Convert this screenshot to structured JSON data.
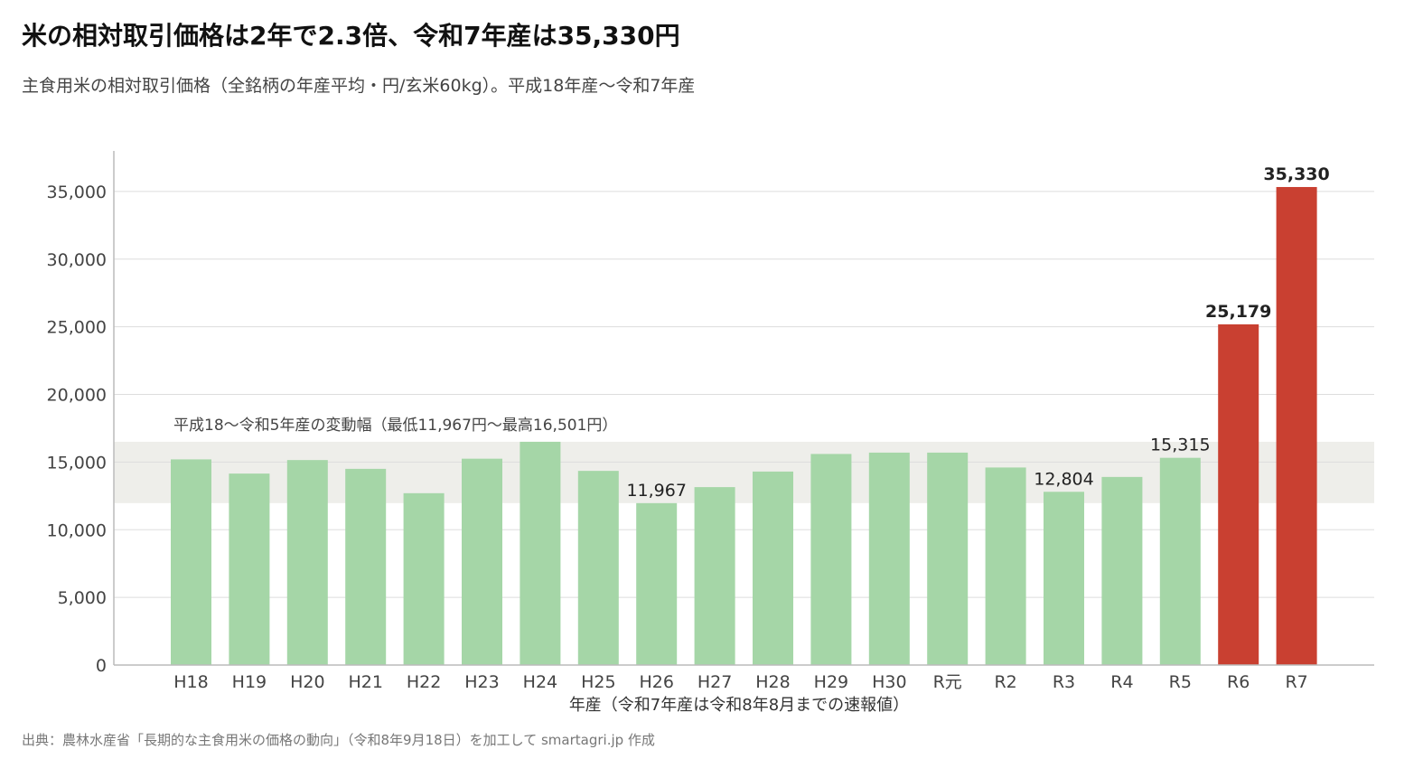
{
  "title": "米の相対取引価格は2年で2.3倍、令和7年産は35,330円",
  "subtitle": "主食用米の相対取引価格（全銘柄の年産平均・円/玄米60kg）。平成18年産〜令和7年産",
  "source": "出典：農林水産省「長期的な主食用米の価格の動向」（令和8年9月18日）を加工して smartagri.jp 作成",
  "colors": {
    "normal_bar": "#a5d6a7",
    "highlight_bar": "#c94031",
    "band": "#eeeeea",
    "grid": "#dddddd",
    "axis": "#bbbbbb"
  },
  "chart_data": {
    "type": "bar",
    "xlabel": "年産（令和7年産は令和8年8月までの速報値）",
    "ylabel": "",
    "ylim": [
      0,
      38000
    ],
    "yticks": [
      0,
      5000,
      10000,
      15000,
      20000,
      25000,
      30000,
      35000
    ],
    "ytick_labels": [
      "0",
      "5,000",
      "10,000",
      "15,000",
      "20,000",
      "25,000",
      "30,000",
      "35,000"
    ],
    "grid": true,
    "categories": [
      "H18",
      "H19",
      "H20",
      "H21",
      "H22",
      "H23",
      "H24",
      "H25",
      "H26",
      "H27",
      "H28",
      "H29",
      "H30",
      "R元",
      "R2",
      "R3",
      "R4",
      "R5",
      "R6",
      "R7"
    ],
    "values": [
      15200,
      14150,
      15150,
      14500,
      12700,
      15250,
      16501,
      14350,
      11967,
      13150,
      14300,
      15600,
      15700,
      15700,
      14600,
      12804,
      13900,
      15315,
      25179,
      35330
    ],
    "highlighted": [
      "R6",
      "R7"
    ],
    "data_labels": [
      {
        "category": "H26",
        "text": "11,967",
        "bold": false
      },
      {
        "category": "R3",
        "text": "12,804",
        "bold": false
      },
      {
        "category": "R5",
        "text": "15,315",
        "bold": false
      },
      {
        "category": "R6",
        "text": "25,179",
        "bold": true
      },
      {
        "category": "R7",
        "text": "35,330",
        "bold": true
      }
    ],
    "band": {
      "low": 11967,
      "high": 16501,
      "label": "平成18〜令和5年産の変動幅（最低11,967円〜最高16,501円）"
    }
  }
}
